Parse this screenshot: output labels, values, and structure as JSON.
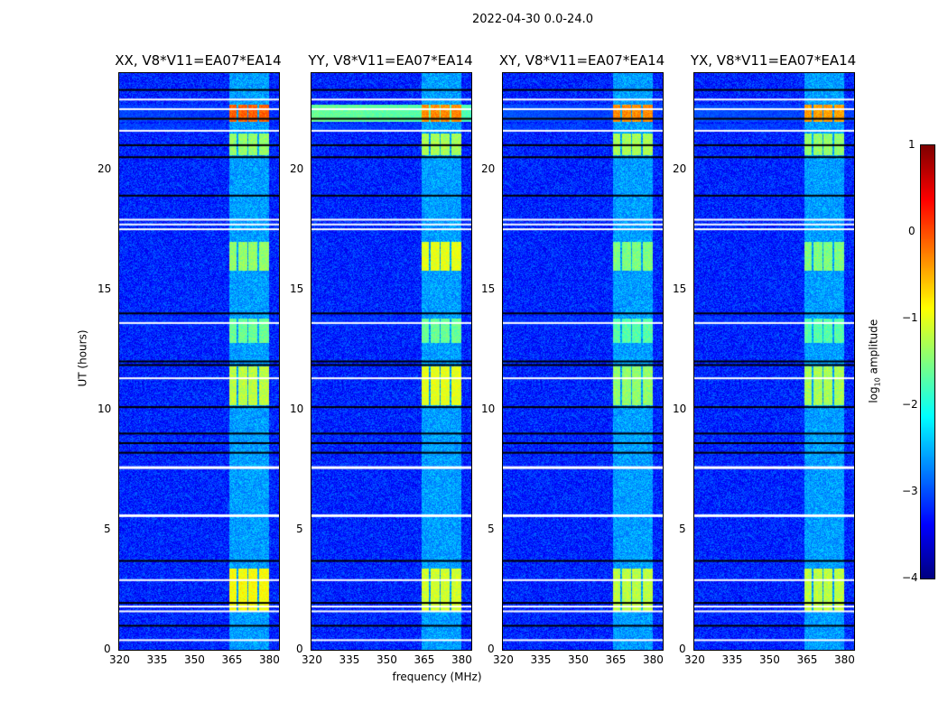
{
  "title": "2022-04-30 0.0-24.0",
  "chart_data": {
    "type": "heatmap",
    "title": "2022-04-30 0.0-24.0",
    "xlabel": "frequency (MHz)",
    "ylabel": "UT (hours)",
    "xlim": [
      320,
      384
    ],
    "ylim": [
      0,
      24
    ],
    "xticks": [
      "320",
      "335",
      "350",
      "365",
      "380"
    ],
    "yticks": [
      "0",
      "5",
      "10",
      "15",
      "20"
    ],
    "panels": [
      {
        "title": "XX, V8*V11=EA07*EA14",
        "full_band_rfi": -2.3,
        "rfi_peak": [
          {
            "t": [
              22.0,
              22.7
            ],
            "v": -0.1
          },
          {
            "t": [
              1.6,
              3.4
            ],
            "v": -0.9
          },
          {
            "t": [
              10.2,
              11.8
            ],
            "v": -1.2
          },
          {
            "t": [
              15.8,
              17.0
            ],
            "v": -1.4
          },
          {
            "t": [
              20.6,
              21.5
            ],
            "v": -1.4
          },
          {
            "t": [
              12.8,
              13.8
            ],
            "v": -1.6
          }
        ]
      },
      {
        "title": "YY, V8*V11=EA07*EA14",
        "full_band_rfi": -0.8,
        "rfi_peak": [
          {
            "t": [
              22.0,
              22.7
            ],
            "v": -0.3
          },
          {
            "t": [
              1.6,
              3.4
            ],
            "v": -1.1
          },
          {
            "t": [
              10.2,
              11.8
            ],
            "v": -1.0
          },
          {
            "t": [
              15.8,
              17.0
            ],
            "v": -1.0
          },
          {
            "t": [
              20.6,
              21.5
            ],
            "v": -1.3
          },
          {
            "t": [
              12.8,
              13.8
            ],
            "v": -1.6
          }
        ]
      },
      {
        "title": "XY, V8*V11=EA07*EA14",
        "full_band_rfi": -2.2,
        "rfi_peak": [
          {
            "t": [
              22.0,
              22.7
            ],
            "v": -0.3
          },
          {
            "t": [
              1.6,
              3.4
            ],
            "v": -1.2
          },
          {
            "t": [
              10.2,
              11.8
            ],
            "v": -1.4
          },
          {
            "t": [
              15.8,
              17.0
            ],
            "v": -1.5
          },
          {
            "t": [
              20.6,
              21.5
            ],
            "v": -1.3
          },
          {
            "t": [
              12.8,
              13.8
            ],
            "v": -1.7
          }
        ]
      },
      {
        "title": "YX, V8*V11=EA07*EA14",
        "full_band_rfi": -2.2,
        "rfi_peak": [
          {
            "t": [
              22.0,
              22.7
            ],
            "v": -0.4
          },
          {
            "t": [
              1.6,
              3.4
            ],
            "v": -1.2
          },
          {
            "t": [
              10.2,
              11.8
            ],
            "v": -1.3
          },
          {
            "t": [
              15.8,
              17.0
            ],
            "v": -1.5
          },
          {
            "t": [
              20.6,
              21.5
            ],
            "v": -1.4
          },
          {
            "t": [
              12.8,
              13.8
            ],
            "v": -1.7
          }
        ]
      }
    ],
    "background_level": -3.2,
    "rfi_channels_mhz": [
      [
        364,
        367
      ],
      [
        367.5,
        371
      ],
      [
        371.5,
        375
      ],
      [
        376,
        380
      ]
    ],
    "flagged_hours": [
      0.4,
      1.6,
      1.8,
      2.9,
      5.6,
      7.6,
      11.3,
      13.6,
      17.5,
      17.7,
      17.9,
      21.6,
      22.5,
      22.9
    ],
    "gap_hours": [
      1.0,
      1.95,
      3.7,
      8.2,
      8.6,
      9.0,
      10.1,
      11.85,
      12.0,
      14.0,
      18.9,
      20.5,
      21.0,
      22.1,
      23.3
    ],
    "colorbar": {
      "label": "log10 amplitude",
      "range": [
        -4,
        1
      ],
      "ticks": [
        "1",
        "0",
        "−1",
        "−2",
        "−3",
        "−4"
      ],
      "colormap": "jet"
    }
  }
}
